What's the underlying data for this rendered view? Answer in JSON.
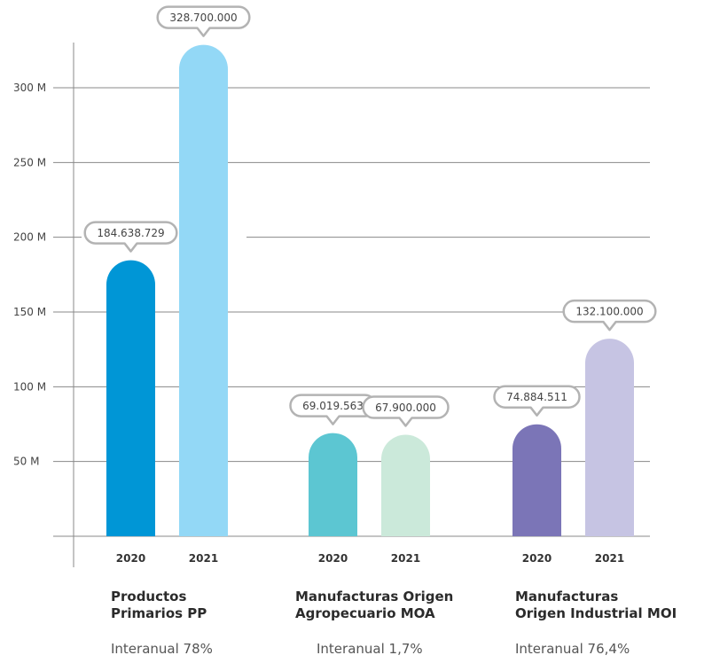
{
  "chart_data": {
    "type": "bar",
    "title": "",
    "xlabel": "",
    "ylabel": "",
    "ylim": [
      0,
      330000000
    ],
    "y_ticks": [
      {
        "value": 50000000,
        "label": "50 M"
      },
      {
        "value": 100000000,
        "label": "100 M"
      },
      {
        "value": 150000000,
        "label": "150 M"
      },
      {
        "value": 200000000,
        "label": "200 M"
      },
      {
        "value": 250000000,
        "label": "250 M"
      },
      {
        "value": 300000000,
        "label": "300 M"
      }
    ],
    "grid": true,
    "groups": [
      {
        "title_lines": [
          "Productos",
          "Primarios PP"
        ],
        "subtitle": "Interanual 78%",
        "bars": [
          {
            "year": "2020",
            "value": 184638729,
            "label": "184.638.729",
            "color": "#0096d6"
          },
          {
            "year": "2021",
            "value": 328700000,
            "label": "328.700.000",
            "color": "#93d8f6"
          }
        ]
      },
      {
        "title_lines": [
          "Manufacturas Origen",
          "Agropecuario MOA"
        ],
        "subtitle": "Interanual 1,7%",
        "bars": [
          {
            "year": "2020",
            "value": 69019563,
            "label": "69.019.563",
            "color": "#5cc6d2"
          },
          {
            "year": "2021",
            "value": 67900000,
            "label": "67.900.000",
            "color": "#cbe9da"
          }
        ]
      },
      {
        "title_lines": [
          "Manufacturas",
          "Origen Industrial MOI"
        ],
        "subtitle": "Interanual  76,4%",
        "bars": [
          {
            "year": "2020",
            "value": 74884511,
            "label": "74.884.511",
            "color": "#7b75b7"
          },
          {
            "year": "2021",
            "value": 132100000,
            "label": "132.100.000",
            "color": "#c6c4e3"
          }
        ]
      }
    ]
  }
}
